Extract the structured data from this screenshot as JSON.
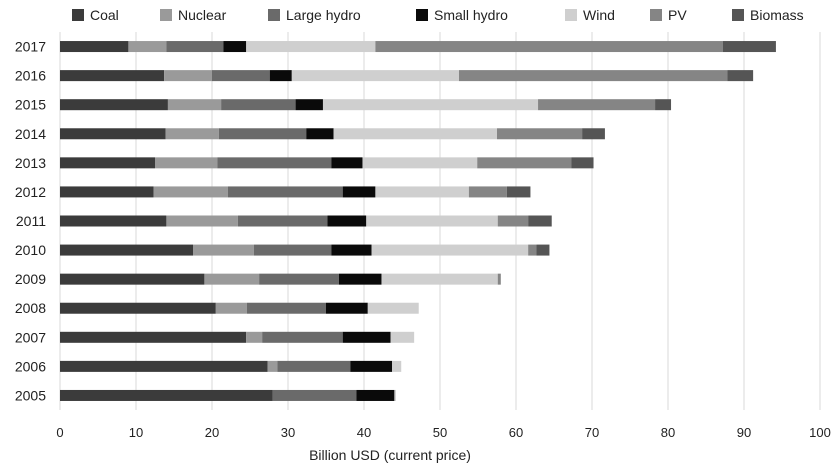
{
  "chart_data": {
    "type": "bar",
    "orientation": "horizontal",
    "stacked": true,
    "xlabel": "Billion USD (current price)",
    "xlim": [
      0,
      100
    ],
    "xticks": [
      0,
      10,
      20,
      30,
      40,
      50,
      60,
      70,
      80,
      90,
      100
    ],
    "xtick_labels": [
      "0",
      "10",
      "20",
      "30",
      "40",
      "50",
      "60",
      "70",
      "80",
      "90",
      "100"
    ],
    "grid": true,
    "legend_position": "top",
    "categories": [
      "2017",
      "2016",
      "2015",
      "2014",
      "2013",
      "2012",
      "2011",
      "2010",
      "2009",
      "2008",
      "2007",
      "2006",
      "2005"
    ],
    "series": [
      {
        "name": "Coal",
        "color": "#3b3b3b",
        "values": [
          9,
          13.7,
          14.2,
          13.9,
          12.5,
          12.3,
          14,
          17.5,
          19,
          20.5,
          24.5,
          27.3,
          28
        ]
      },
      {
        "name": "Nuclear",
        "color": "#9a9a9a",
        "values": [
          5,
          6.3,
          7,
          7,
          8.2,
          9.8,
          9.4,
          8,
          7.2,
          4.1,
          2.1,
          1.3,
          0
        ]
      },
      {
        "name": "Large hydro",
        "color": "#6a6a6a",
        "values": [
          7.5,
          7.6,
          9.8,
          11.5,
          15,
          15.1,
          11.8,
          10.2,
          10.5,
          10.4,
          10.6,
          9.6,
          11
        ]
      },
      {
        "name": "Small hydro",
        "color": "#0a0a0a",
        "values": [
          3,
          2.9,
          3.6,
          3.6,
          4.1,
          4.3,
          5.1,
          5.3,
          5.6,
          5.5,
          6.3,
          5.5,
          5
        ]
      },
      {
        "name": "Wind",
        "color": "#cfcfcf",
        "values": [
          17,
          22,
          28.3,
          21.5,
          15.1,
          12.3,
          17.3,
          20.6,
          15.3,
          6.7,
          3.1,
          1.2,
          0.2
        ]
      },
      {
        "name": "PV",
        "color": "#858585",
        "values": [
          45.7,
          35.3,
          15.4,
          11.2,
          12.4,
          5,
          4,
          1.1,
          0.4,
          0,
          0,
          0,
          0
        ]
      },
      {
        "name": "Biomass",
        "color": "#555555",
        "values": [
          7,
          3.4,
          2.1,
          3,
          2.9,
          3.1,
          3.1,
          1.7,
          0,
          0,
          0,
          0,
          0
        ]
      }
    ]
  }
}
